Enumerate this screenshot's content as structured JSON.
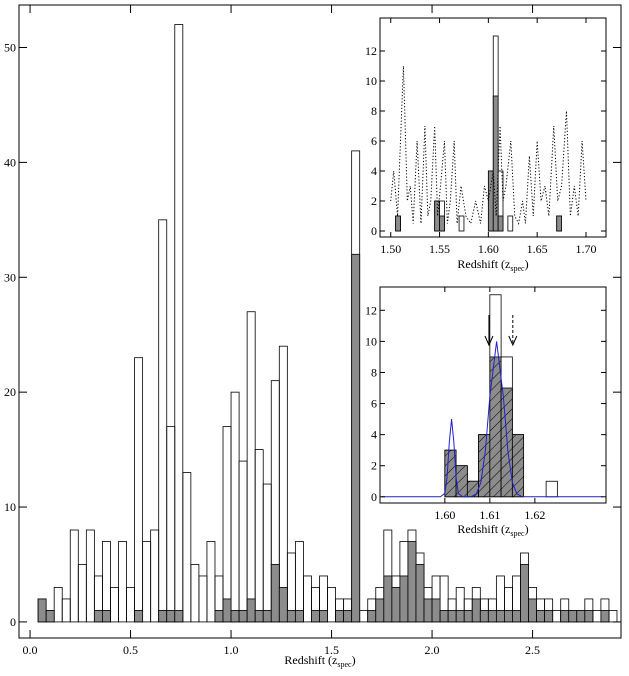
{
  "chart_data": [
    {
      "type": "histogram",
      "xlabel": "Redshift (z",
      "xlabel_sub": "spec",
      "xlabel_end": ")",
      "xlim": [
        -0.055,
        2.94
      ],
      "ylim": [
        -1.4,
        53.7
      ],
      "xticks": [
        {
          "value": 0,
          "label": "0.0"
        },
        0.5,
        {
          "value": 1,
          "label": "1.0"
        },
        1.5,
        {
          "value": 2,
          "label": "2.0"
        },
        2.5
      ],
      "yticks": [
        0,
        10,
        20,
        30,
        40,
        50
      ],
      "bins": [
        0,
        0.04,
        0.08,
        0.12,
        0.16,
        0.2,
        0.24,
        0.28,
        0.32,
        0.36,
        0.4,
        0.44,
        0.48,
        0.52,
        0.56,
        0.6,
        0.64,
        0.68,
        0.72,
        0.76,
        0.8,
        0.84,
        0.88,
        0.92,
        0.96,
        1,
        1.04,
        1.08,
        1.12,
        1.16,
        1.2,
        1.24,
        1.28,
        1.32,
        1.36,
        1.4,
        1.44,
        1.48,
        1.52,
        1.56,
        1.6,
        1.64,
        1.68,
        1.72,
        1.76,
        1.8,
        1.84,
        1.88,
        1.92,
        1.96,
        2,
        2.04,
        2.08,
        2.12,
        2.16,
        2.2,
        2.24,
        2.28,
        2.32,
        2.36,
        2.4,
        2.44,
        2.48,
        2.52,
        2.56,
        2.6,
        2.64,
        2.68,
        2.72,
        2.76,
        2.8,
        2.84,
        2.88,
        2.92
      ],
      "series": [
        {
          "color": "none",
          "values": [
            0,
            2,
            1,
            3,
            2,
            8,
            5,
            8,
            4,
            7,
            3,
            7,
            3,
            23,
            7,
            8,
            35,
            17,
            52,
            13,
            5,
            4,
            7,
            4,
            17,
            20,
            14,
            27,
            15,
            12,
            21,
            24,
            6,
            7,
            4,
            3,
            4,
            3,
            2,
            2,
            41,
            1,
            2,
            3,
            8,
            4,
            7,
            8,
            6,
            3,
            4,
            4,
            2,
            3,
            2,
            3,
            2,
            2,
            4,
            3,
            4,
            6,
            3,
            2,
            2,
            1,
            2,
            1,
            1,
            2,
            1,
            2,
            1
          ]
        },
        {
          "color": "#8c8c8c",
          "values": [
            0,
            2,
            1,
            0,
            0,
            0,
            0,
            0,
            1,
            1,
            0,
            0,
            0,
            1,
            0,
            0,
            1,
            1,
            1,
            0,
            0,
            0,
            0,
            1,
            2,
            1,
            1,
            2,
            1,
            1,
            5,
            3,
            1,
            1,
            0,
            1,
            1,
            0,
            1,
            1,
            32,
            0,
            1,
            2,
            4,
            3,
            4,
            7,
            5,
            2,
            2,
            1,
            1,
            1,
            1,
            2,
            1,
            1,
            1,
            1,
            1,
            5,
            2,
            1,
            1,
            0,
            1,
            1,
            1,
            1,
            0,
            1,
            0
          ]
        }
      ]
    },
    {
      "type": "histogram",
      "xlabel": "Redshift (z",
      "xlabel_sub": "spec",
      "xlabel_end": ")",
      "xlim": [
        1.489,
        1.7205
      ],
      "ylim": [
        -0.4,
        14.2
      ],
      "xticks": [
        {
          "value": 1.5,
          "label": "1.50"
        },
        1.55,
        {
          "value": 1.6,
          "label": "1.60"
        },
        1.65,
        {
          "value": 1.7,
          "label": "1.70"
        }
      ],
      "yticks": [
        0,
        2,
        4,
        6,
        8,
        10,
        12
      ],
      "bins": [
        1.5,
        1.505,
        1.51,
        1.515,
        1.52,
        1.525,
        1.53,
        1.535,
        1.54,
        1.545,
        1.55,
        1.555,
        1.56,
        1.565,
        1.57,
        1.575,
        1.58,
        1.585,
        1.59,
        1.595,
        1.6,
        1.605,
        1.61,
        1.615,
        1.62,
        1.625,
        1.63,
        1.635,
        1.64,
        1.645,
        1.65,
        1.655,
        1.66,
        1.665,
        1.67,
        1.675,
        1.68,
        1.685,
        1.69,
        1.695,
        1.7
      ],
      "series": [
        {
          "color": "none",
          "values": [
            0,
            1,
            0,
            0,
            0,
            0,
            0,
            0,
            0,
            2,
            2,
            0,
            0,
            0,
            1,
            0,
            0,
            0,
            0,
            0,
            4,
            13,
            4,
            0,
            1,
            0,
            0,
            0,
            0,
            0,
            0,
            0,
            0,
            0,
            1,
            0,
            0,
            0,
            0,
            0
          ]
        },
        {
          "color": "#8c8c8c",
          "values": [
            0,
            1,
            0,
            0,
            0,
            0,
            0,
            0,
            0,
            2,
            1,
            0,
            0,
            0,
            0,
            0,
            0,
            0,
            0,
            0,
            4,
            9,
            1,
            0,
            0,
            0,
            0,
            0,
            0,
            0,
            0,
            0,
            0,
            0,
            1,
            0,
            0,
            0,
            0,
            0
          ]
        }
      ],
      "lines": [
        {
          "color": "#000000",
          "style": "dotted",
          "x": [
            1.5,
            1.503,
            1.507,
            1.513,
            1.517,
            1.52,
            1.523,
            1.527,
            1.531,
            1.535,
            1.538,
            1.541,
            1.545,
            1.548,
            1.551,
            1.555,
            1.558,
            1.561,
            1.565,
            1.568,
            1.572,
            1.577,
            1.582,
            1.587,
            1.592,
            1.596,
            1.6,
            1.605,
            1.608,
            1.612,
            1.615,
            1.618,
            1.623,
            1.627,
            1.631,
            1.635,
            1.638,
            1.642,
            1.646,
            1.65,
            1.654,
            1.658,
            1.662,
            1.667,
            1.671,
            1.675,
            1.68,
            1.684,
            1.688,
            1.692,
            1.696,
            1.7
          ],
          "values": [
            2,
            4,
            1,
            11,
            2,
            3,
            0.5,
            6,
            0.5,
            7,
            1,
            2,
            7,
            1,
            3,
            6,
            0.5,
            2,
            6,
            0.5,
            3,
            1,
            0.5,
            2,
            0.5,
            3,
            2,
            4,
            1,
            7,
            2,
            3,
            6,
            1,
            0.5,
            2,
            0.5,
            5,
            1,
            6,
            2,
            3,
            1,
            7,
            2,
            3,
            8,
            1,
            3,
            1,
            6,
            2
          ]
        }
      ]
    },
    {
      "type": "histogram",
      "xlabel": "Redshift (z",
      "xlabel_sub": "spec",
      "xlabel_end": ")",
      "xlim": [
        1.5856,
        1.6358
      ],
      "ylim": [
        -0.4,
        13.5
      ],
      "xticks": [
        {
          "value": 1.6,
          "label": "1.60"
        },
        1.61,
        1.62
      ],
      "yticks": [
        0,
        2,
        4,
        6,
        8,
        10,
        12
      ],
      "bins": [
        1.6,
        1.6025,
        1.605,
        1.6075,
        1.61,
        1.6125,
        1.615,
        1.6175,
        1.62,
        1.6225,
        1.625
      ],
      "series": [
        {
          "color": "none",
          "values": [
            3,
            2,
            1,
            4,
            13,
            9,
            4,
            0,
            0,
            1
          ]
        },
        {
          "color": "#8c8c8c",
          "hatch": true,
          "values": [
            3,
            2,
            1,
            4,
            9,
            7,
            4,
            0,
            0,
            0
          ]
        }
      ],
      "lines": [
        {
          "color": "#2222cc",
          "style": "solid",
          "x": [
            1.586,
            1.599,
            1.6,
            1.6005,
            1.601,
            1.6015,
            1.602,
            1.6025,
            1.603,
            1.604,
            1.605,
            1.606,
            1.607,
            1.608,
            1.609,
            1.61,
            1.6115,
            1.613,
            1.614,
            1.615,
            1.616,
            1.617,
            1.618,
            1.635
          ],
          "values": [
            0,
            0,
            0.22,
            1.25,
            3.53,
            5,
            3.53,
            1.25,
            0.22,
            0,
            0,
            0.03,
            0.19,
            0.92,
            2.95,
            6.45,
            10,
            6.45,
            2.95,
            0.92,
            0.19,
            0.03,
            0,
            0
          ]
        }
      ],
      "arrows": [
        1.6098,
        1.6151
      ],
      "arrow_styles": [
        "solid",
        "dashed"
      ]
    }
  ]
}
